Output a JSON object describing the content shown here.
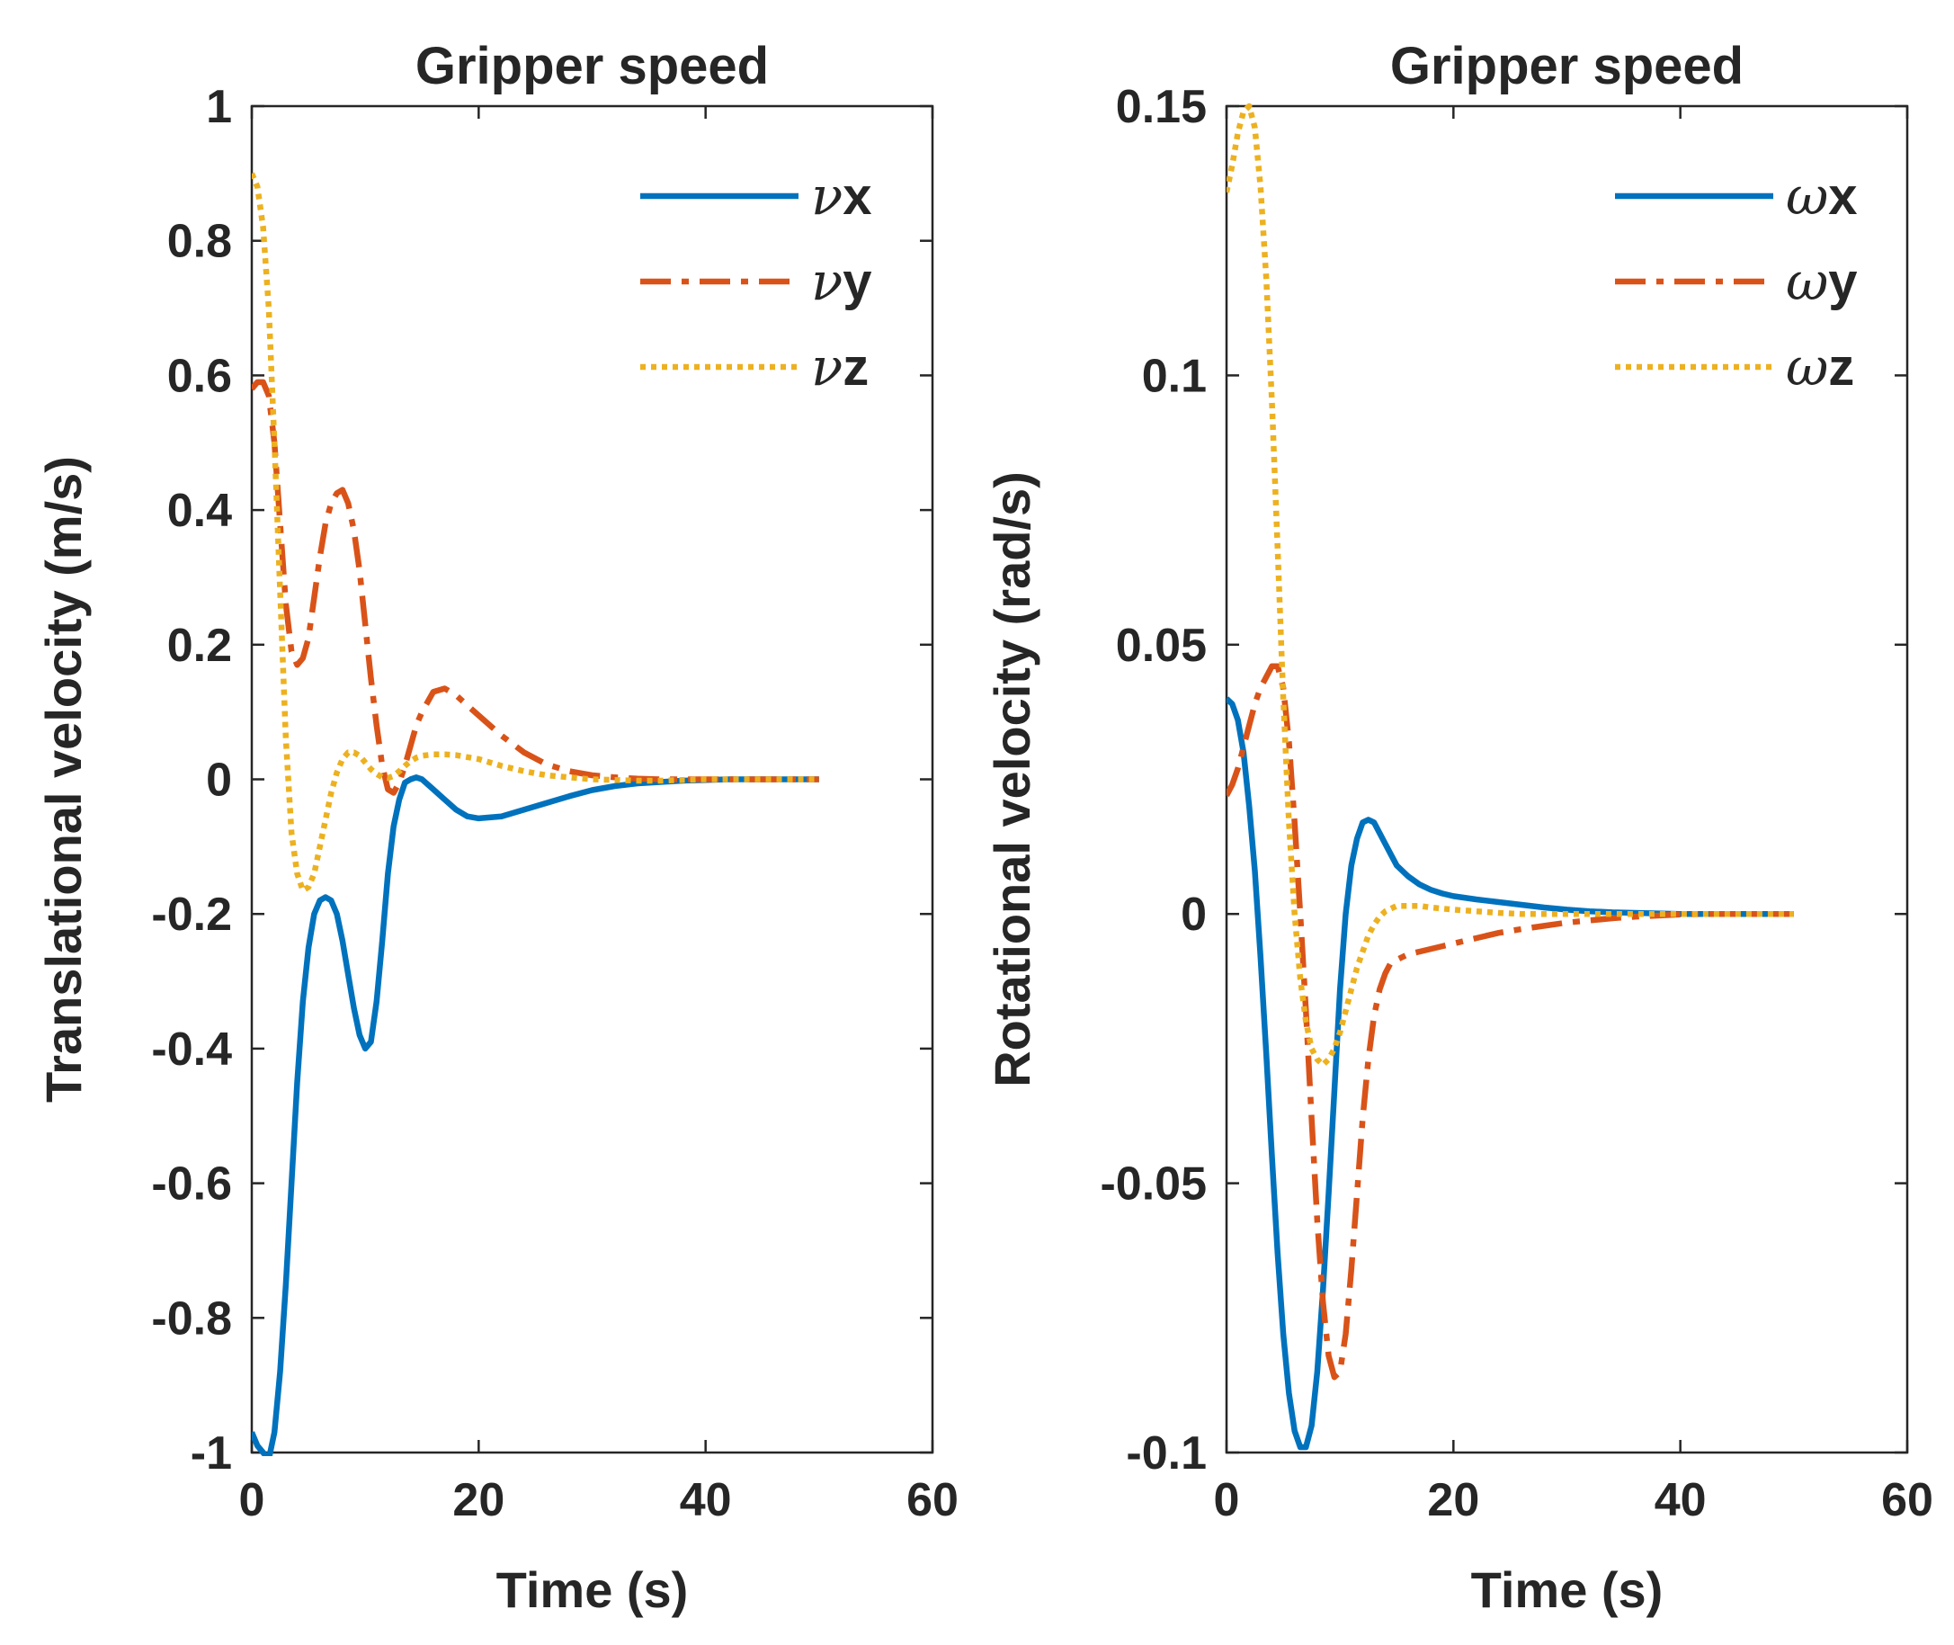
{
  "chart_data": [
    {
      "type": "line",
      "title": "Gripper speed",
      "xlabel": "Time (s)",
      "ylabel": "Translational velocity (m/s)",
      "xlim": [
        0,
        60
      ],
      "ylim": [
        -1,
        1
      ],
      "xticks": [
        0,
        20,
        40,
        60
      ],
      "yticks": [
        1,
        0.8,
        0.6,
        0.4,
        0.2,
        0,
        -0.2,
        -0.4,
        -0.6,
        -0.8,
        -1
      ],
      "xtick_labels": [
        "0",
        "20",
        "40",
        "60"
      ],
      "ytick_labels": [
        "1",
        "0.8",
        "0.6",
        "0.4",
        "0.2",
        "0",
        "-0.2",
        "-0.4",
        "-0.6",
        "-0.8",
        "-1"
      ],
      "legend_position": "top-right",
      "series": [
        {
          "name": "νx",
          "symbol": "ν",
          "axis": "x",
          "color": "#0072BD",
          "style": "solid",
          "x": [
            0,
            0.5,
            1,
            1.5,
            2,
            2.5,
            3,
            3.5,
            4,
            4.5,
            5,
            5.5,
            6,
            6.5,
            7,
            7.5,
            8,
            8.5,
            9,
            9.5,
            10,
            10.5,
            11,
            11.5,
            12,
            12.5,
            13,
            13.5,
            14,
            14.5,
            15,
            16,
            17,
            18,
            19,
            20,
            22,
            24,
            26,
            28,
            30,
            32,
            34,
            36,
            38,
            40,
            42,
            44,
            46,
            48,
            50
          ],
          "y": [
            -0.97,
            -0.99,
            -1.0,
            -1.01,
            -0.97,
            -0.88,
            -0.75,
            -0.6,
            -0.45,
            -0.33,
            -0.25,
            -0.2,
            -0.18,
            -0.175,
            -0.18,
            -0.2,
            -0.24,
            -0.29,
            -0.34,
            -0.38,
            -0.4,
            -0.39,
            -0.33,
            -0.24,
            -0.14,
            -0.07,
            -0.03,
            -0.005,
            0.0,
            0.003,
            0.0,
            -0.015,
            -0.03,
            -0.045,
            -0.055,
            -0.058,
            -0.055,
            -0.045,
            -0.035,
            -0.025,
            -0.016,
            -0.01,
            -0.006,
            -0.004,
            -0.002,
            -0.001,
            0.0,
            0.0,
            0.0,
            0.0,
            0.0
          ]
        },
        {
          "name": "νy",
          "symbol": "ν",
          "axis": "y",
          "color": "#D95319",
          "style": "dashdot",
          "x": [
            0,
            0.5,
            1,
            1.5,
            2,
            2.5,
            3,
            3.5,
            4,
            4.5,
            5,
            5.5,
            6,
            6.5,
            7,
            7.5,
            8,
            8.5,
            9,
            9.5,
            10,
            10.5,
            11,
            11.5,
            12,
            12.5,
            13,
            13.5,
            14,
            14.5,
            15,
            16,
            17,
            18,
            19,
            20,
            22,
            24,
            26,
            28,
            30,
            32,
            34,
            36,
            38,
            40,
            42,
            44,
            46,
            48,
            50
          ],
          "y": [
            0.58,
            0.59,
            0.59,
            0.57,
            0.5,
            0.38,
            0.26,
            0.19,
            0.17,
            0.18,
            0.21,
            0.27,
            0.33,
            0.38,
            0.41,
            0.425,
            0.43,
            0.41,
            0.37,
            0.31,
            0.23,
            0.15,
            0.08,
            0.02,
            -0.015,
            -0.02,
            -0.005,
            0.02,
            0.05,
            0.08,
            0.1,
            0.13,
            0.135,
            0.125,
            0.11,
            0.095,
            0.065,
            0.04,
            0.022,
            0.012,
            0.006,
            0.003,
            0.001,
            0.0,
            0.0,
            0.0,
            0.0,
            0.0,
            0.0,
            0.0,
            0.0
          ]
        },
        {
          "name": "νz",
          "symbol": "ν",
          "axis": "z",
          "color": "#EDB120",
          "style": "dotted",
          "x": [
            0,
            0.5,
            1,
            1.5,
            2,
            2.5,
            3,
            3.5,
            4,
            4.5,
            5,
            5.5,
            6,
            6.5,
            7,
            7.5,
            8,
            8.5,
            9,
            9.5,
            10,
            10.5,
            11,
            11.5,
            12,
            12.5,
            13,
            13.5,
            14,
            14.5,
            15,
            16,
            17,
            18,
            19,
            20,
            22,
            24,
            26,
            28,
            30,
            32,
            34,
            36,
            38,
            40,
            42,
            44,
            46,
            48,
            50
          ],
          "y": [
            0.9,
            0.88,
            0.82,
            0.7,
            0.5,
            0.28,
            0.06,
            -0.08,
            -0.14,
            -0.165,
            -0.16,
            -0.14,
            -0.1,
            -0.06,
            -0.02,
            0.01,
            0.03,
            0.04,
            0.04,
            0.035,
            0.025,
            0.015,
            0.008,
            0.003,
            0.002,
            0.005,
            0.012,
            0.02,
            0.027,
            0.032,
            0.035,
            0.037,
            0.037,
            0.036,
            0.033,
            0.03,
            0.02,
            0.012,
            0.006,
            0.003,
            0.0,
            -0.001,
            -0.002,
            -0.002,
            -0.001,
            0.0,
            0.0,
            0.0,
            0.0,
            0.0,
            0.0
          ]
        }
      ]
    },
    {
      "type": "line",
      "title": "Gripper speed",
      "xlabel": "Time (s)",
      "ylabel": "Rotational velocity (rad/s)",
      "xlim": [
        0,
        60
      ],
      "ylim": [
        -0.1,
        0.15
      ],
      "xticks": [
        0,
        20,
        40,
        60
      ],
      "yticks": [
        0.15,
        0.1,
        0.05,
        0,
        -0.05,
        -0.1
      ],
      "xtick_labels": [
        "0",
        "20",
        "40",
        "60"
      ],
      "ytick_labels": [
        "0.15",
        "0.1",
        "0.05",
        "0",
        "-0.05",
        "-0.1"
      ],
      "legend_position": "top-right",
      "series": [
        {
          "name": "ωx",
          "symbol": "ω",
          "axis": "x",
          "color": "#0072BD",
          "style": "solid",
          "x": [
            0,
            0.5,
            1,
            1.5,
            2,
            2.5,
            3,
            3.5,
            4,
            4.5,
            5,
            5.5,
            6,
            6.5,
            7,
            7.5,
            8,
            8.5,
            9,
            9.5,
            10,
            10.5,
            11,
            11.5,
            12,
            12.5,
            13,
            13.5,
            14,
            14.5,
            15,
            16,
            17,
            18,
            19,
            20,
            22,
            24,
            26,
            28,
            30,
            32,
            34,
            36,
            38,
            40,
            42,
            44,
            46,
            48,
            50
          ],
          "y": [
            0.04,
            0.039,
            0.036,
            0.03,
            0.02,
            0.008,
            -0.008,
            -0.026,
            -0.045,
            -0.063,
            -0.078,
            -0.089,
            -0.096,
            -0.099,
            -0.099,
            -0.095,
            -0.085,
            -0.07,
            -0.052,
            -0.033,
            -0.014,
            0.0,
            0.009,
            0.014,
            0.017,
            0.0175,
            0.017,
            0.015,
            0.013,
            0.011,
            0.009,
            0.007,
            0.0055,
            0.0045,
            0.0038,
            0.0033,
            0.0027,
            0.0022,
            0.0017,
            0.0012,
            0.0008,
            0.0005,
            0.0003,
            0.0002,
            0.0001,
            0.0,
            0.0,
            0.0,
            0.0,
            0.0,
            0.0
          ]
        },
        {
          "name": "ωy",
          "symbol": "ω",
          "axis": "y",
          "color": "#D95319",
          "style": "dashdot",
          "x": [
            0,
            0.5,
            1,
            1.5,
            2,
            2.5,
            3,
            3.5,
            4,
            4.5,
            5,
            5.5,
            6,
            6.5,
            7,
            7.5,
            8,
            8.5,
            9,
            9.5,
            10,
            10.5,
            11,
            11.5,
            12,
            12.5,
            13,
            13.5,
            14,
            14.5,
            15,
            16,
            17,
            18,
            19,
            20,
            22,
            24,
            26,
            28,
            30,
            32,
            34,
            36,
            38,
            40,
            42,
            44,
            46,
            48,
            50
          ],
          "y": [
            0.022,
            0.024,
            0.027,
            0.031,
            0.035,
            0.039,
            0.042,
            0.044,
            0.046,
            0.046,
            0.042,
            0.032,
            0.017,
            0.0,
            -0.018,
            -0.038,
            -0.057,
            -0.072,
            -0.082,
            -0.086,
            -0.085,
            -0.078,
            -0.066,
            -0.052,
            -0.038,
            -0.027,
            -0.019,
            -0.014,
            -0.011,
            -0.009,
            -0.0085,
            -0.0075,
            -0.007,
            -0.0065,
            -0.006,
            -0.0055,
            -0.0045,
            -0.0035,
            -0.0028,
            -0.0022,
            -0.0016,
            -0.0012,
            -0.0008,
            -0.0005,
            -0.0003,
            -0.0001,
            0.0,
            0.0,
            0.0,
            0.0,
            0.0
          ]
        },
        {
          "name": "ωz",
          "symbol": "ω",
          "axis": "z",
          "color": "#EDB120",
          "style": "dotted",
          "x": [
            0,
            0.5,
            1,
            1.5,
            2,
            2.5,
            3,
            3.5,
            4,
            4.5,
            5,
            5.5,
            6,
            6.5,
            7,
            7.5,
            8,
            8.5,
            9,
            9.5,
            10,
            10.5,
            11,
            11.5,
            12,
            12.5,
            13,
            13.5,
            14,
            14.5,
            15,
            16,
            17,
            18,
            19,
            20,
            22,
            24,
            26,
            28,
            30,
            32,
            34,
            36,
            38,
            40,
            42,
            44,
            46,
            48,
            50
          ],
          "y": [
            0.134,
            0.139,
            0.145,
            0.149,
            0.15,
            0.146,
            0.135,
            0.118,
            0.095,
            0.068,
            0.04,
            0.017,
            0.0,
            -0.012,
            -0.02,
            -0.025,
            -0.027,
            -0.028,
            -0.027,
            -0.025,
            -0.022,
            -0.018,
            -0.014,
            -0.01,
            -0.007,
            -0.004,
            -0.002,
            -0.0005,
            0.0005,
            0.001,
            0.0015,
            0.0015,
            0.0015,
            0.0012,
            0.001,
            0.0008,
            0.0005,
            0.0002,
            0.0,
            0.0,
            0.0,
            0.0,
            0.0,
            0.0,
            0.0,
            0.0,
            0.0,
            0.0,
            0.0,
            0.0,
            0.0
          ]
        }
      ]
    }
  ]
}
